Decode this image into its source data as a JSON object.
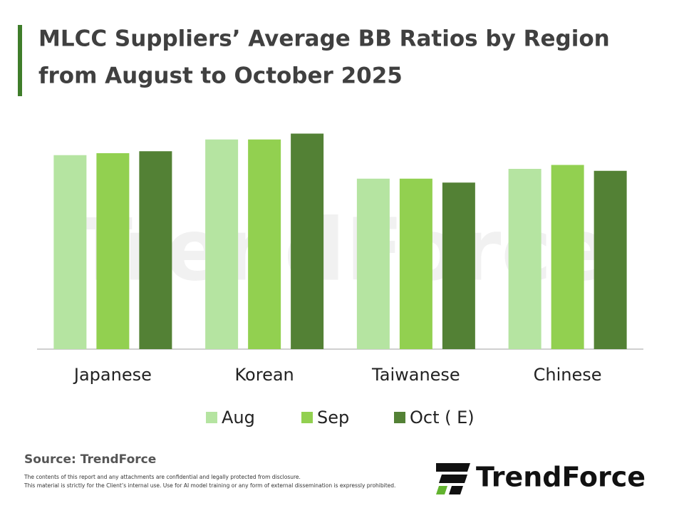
{
  "chart_data": {
    "type": "bar",
    "title": [
      "MLCC Suppliers’ Average BB Ratios by Region",
      "from August to October 2025"
    ],
    "categories": [
      "Japanese",
      "Korean",
      "Taiwanese",
      "Chinese"
    ],
    "series": [
      {
        "name": "Aug",
        "color": "#b5e4a1",
        "values": [
          0.99,
          1.07,
          0.87,
          0.92
        ]
      },
      {
        "name": "Sep",
        "color": "#92d050",
        "values": [
          1.0,
          1.07,
          0.87,
          0.94
        ]
      },
      {
        "name": "Oct ( E)",
        "color": "#538135",
        "values": [
          1.01,
          1.1,
          0.85,
          0.91
        ]
      }
    ],
    "ylim": [
      0,
      1.2
    ],
    "legend": "bottom",
    "watermark": "TrendForce",
    "source": "Source: TrendForce",
    "disclaimer": [
      "The contents of this report and any attachments are confidential and legally protected from disclosure.",
      "This material is strictly for the Client’s internal use. Use for AI model training or any form of external dissemination is expressly prohibited."
    ],
    "logo": "TrendForce"
  }
}
